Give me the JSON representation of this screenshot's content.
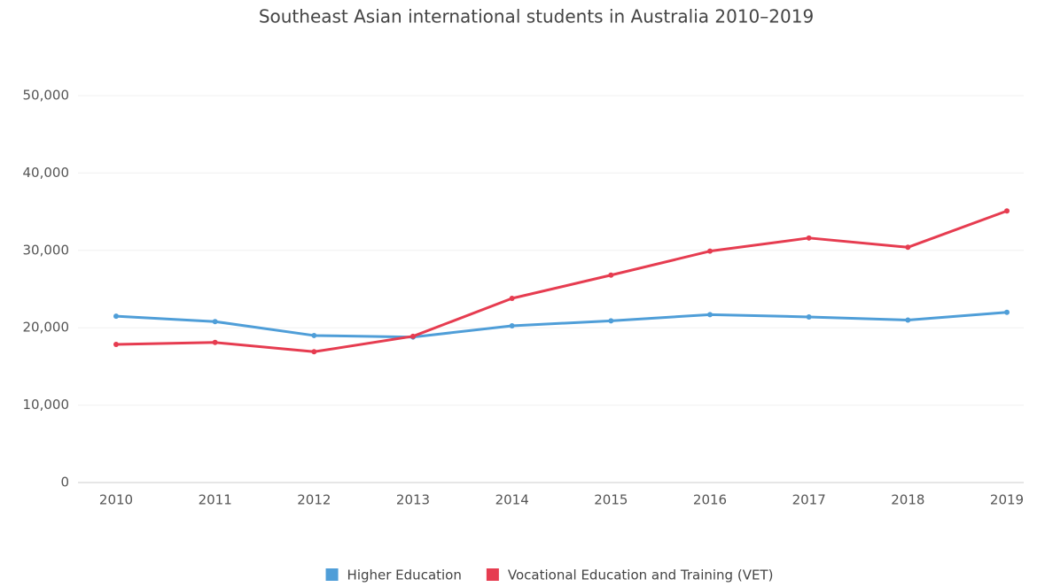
{
  "chart_data": {
    "type": "line",
    "title": "Southeast Asian international students in Australia 2010–2019",
    "categories": [
      "2010",
      "2011",
      "2012",
      "2013",
      "2014",
      "2015",
      "2016",
      "2017",
      "2018",
      "2019"
    ],
    "series": [
      {
        "name": "Higher Education",
        "color": "#4f9ed8",
        "values": [
          21500,
          20800,
          19000,
          18800,
          20250,
          20900,
          21700,
          21400,
          21000,
          22000
        ]
      },
      {
        "name": "Vocational Education and Training (VET)",
        "color": "#e63c50",
        "values": [
          17850,
          18100,
          16900,
          18900,
          23800,
          26800,
          29900,
          31600,
          30400,
          35100
        ]
      }
    ],
    "ylim": [
      0,
      50000
    ],
    "yticks": [
      0,
      {
        "value": 10000,
        "label": "10,000"
      },
      {
        "value": 20000,
        "label": "20,000"
      },
      {
        "value": 30000,
        "label": "30,000"
      },
      {
        "value": 40000,
        "label": "40,000"
      },
      {
        "value": 50000,
        "label": "50,000"
      }
    ],
    "grid": true,
    "legend": "bottom"
  }
}
